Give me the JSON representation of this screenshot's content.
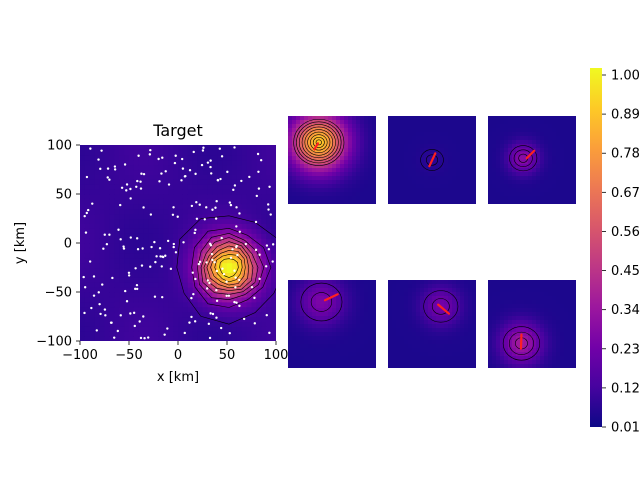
{
  "chart_data": {
    "type": "heatmap",
    "colors": {
      "cmap": [
        "#0d0887",
        "#46039f",
        "#7201a8",
        "#9c179e",
        "#bd3786",
        "#d8576b",
        "#ed7953",
        "#fb9f3a",
        "#fdca26",
        "#f0f921"
      ],
      "contour": "#000000",
      "stations": "#ffffff",
      "arrow": "#ff2020"
    },
    "main": {
      "title": "Target",
      "xlabel": "x [km]",
      "ylabel": "y [km]",
      "xlim": [
        -100,
        100
      ],
      "ylim": [
        -100,
        100
      ],
      "xticks": [
        "−100",
        "−50",
        "0",
        "50",
        "100"
      ],
      "yticks": [
        "100",
        "50",
        "0",
        "−50",
        "−100"
      ],
      "peak": {
        "x": 52,
        "y": -25,
        "amplitude": 1.0,
        "spread_km": 20
      },
      "background_level": 0.08,
      "contour_levels": [
        0.1,
        0.2,
        0.3,
        0.4,
        0.5,
        0.6,
        0.7,
        0.8,
        0.9
      ],
      "station_count": 230
    },
    "panels": [
      {
        "peak_x": 0.35,
        "peak_y": 0.3,
        "amplitude": 0.85,
        "spread": 0.22,
        "arrow": {
          "x": 0.3,
          "y": 0.38,
          "angle_deg": -60,
          "length": 0.08
        }
      },
      {
        "peak_x": 0.5,
        "peak_y": 0.5,
        "amplitude": 0.03,
        "spread": 0.1,
        "arrow": {
          "x": 0.47,
          "y": 0.57,
          "angle_deg": -65,
          "length": 0.16
        }
      },
      {
        "peak_x": 0.4,
        "peak_y": 0.48,
        "amplitude": 0.25,
        "spread": 0.12,
        "arrow": {
          "x": 0.44,
          "y": 0.48,
          "angle_deg": -45,
          "length": 0.12
        }
      },
      {
        "peak_x": 0.38,
        "peak_y": 0.25,
        "amplitude": 0.22,
        "spread": 0.18,
        "arrow": {
          "x": 0.42,
          "y": 0.23,
          "angle_deg": -25,
          "length": 0.16
        }
      },
      {
        "peak_x": 0.6,
        "peak_y": 0.3,
        "amplitude": 0.2,
        "spread": 0.15,
        "arrow": {
          "x": 0.57,
          "y": 0.28,
          "angle_deg": 40,
          "length": 0.16
        }
      },
      {
        "peak_x": 0.38,
        "peak_y": 0.72,
        "amplitude": 0.32,
        "spread": 0.16,
        "arrow": {
          "x": 0.38,
          "y": 0.62,
          "angle_deg": 92,
          "length": 0.16
        }
      }
    ],
    "colorbar": {
      "vmin": 0.01,
      "vmax": 1.0,
      "ticks": [
        "1.00",
        "0.89",
        "0.78",
        "0.67",
        "0.56",
        "0.45",
        "0.34",
        "0.23",
        "0.12",
        "0.01"
      ]
    }
  }
}
